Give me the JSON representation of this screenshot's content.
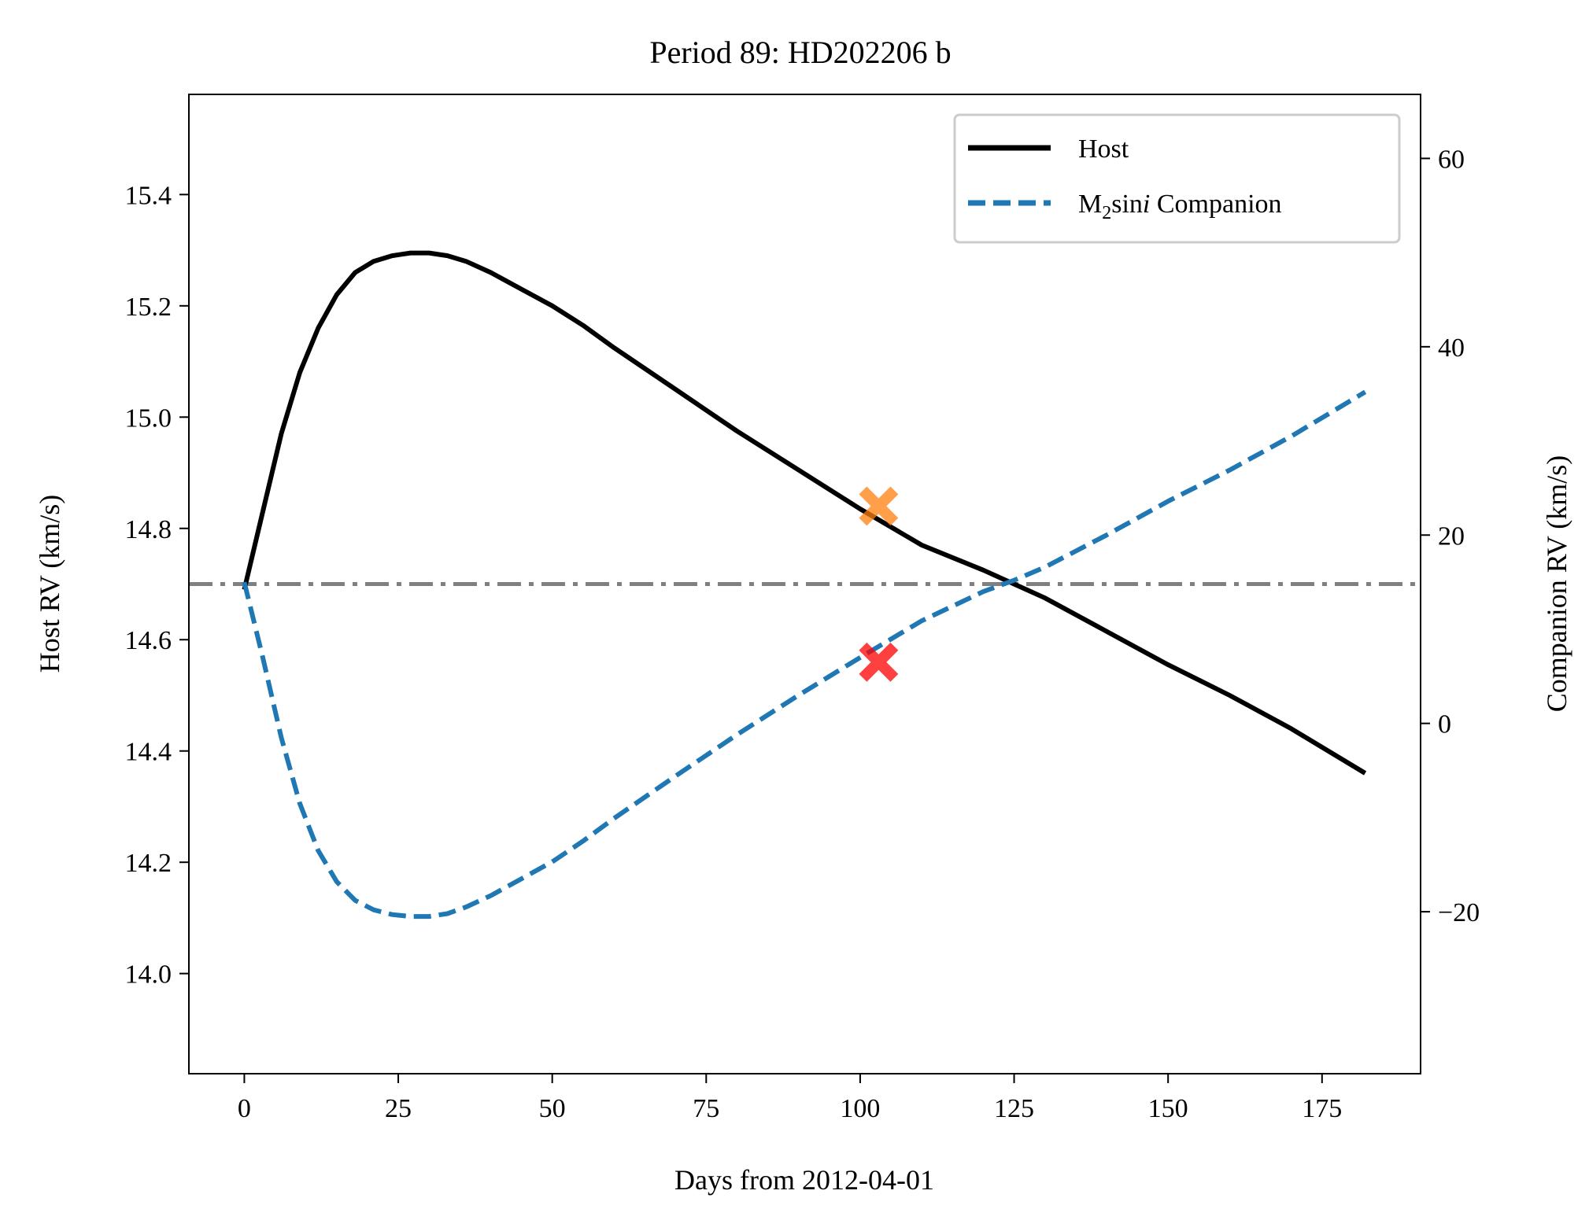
{
  "chart_data": {
    "type": "line",
    "title": "Period 89: HD202206 b",
    "xlabel": "Days from 2012-04-01",
    "ylabel_left": "Host RV (km/s)",
    "ylabel_right": "Companion RV (km/s)",
    "xlim": [
      -9,
      191
    ],
    "ylim_left": [
      13.82,
      15.58
    ],
    "ylim_right": [
      -37.2,
      66.8
    ],
    "x_ticks": [
      0,
      25,
      50,
      75,
      100,
      125,
      150,
      175
    ],
    "x_tick_labels": [
      "0",
      "25",
      "50",
      "75",
      "100",
      "125",
      "150",
      "175"
    ],
    "y_left_ticks": [
      14.0,
      14.2,
      14.4,
      14.6,
      14.8,
      15.0,
      15.2,
      15.4
    ],
    "y_left_tick_labels": [
      "14.0",
      "14.2",
      "14.4",
      "14.6",
      "14.8",
      "15.0",
      "15.2",
      "15.4"
    ],
    "y_right_ticks": [
      -20,
      0,
      20,
      40,
      60
    ],
    "y_right_tick_labels": [
      "−20",
      "0",
      "20",
      "40",
      "60"
    ],
    "grid": false,
    "legend_position": "top-right",
    "systemic_velocity_line": {
      "y_left": 14.7,
      "color": "#808080",
      "style": "dash-dot"
    },
    "series": [
      {
        "name": "Host",
        "axis": "left",
        "color": "#000000",
        "style": "solid",
        "x": [
          0,
          3,
          6,
          9,
          12,
          15,
          18,
          21,
          24,
          27,
          30,
          33,
          36,
          40,
          45,
          50,
          55,
          60,
          70,
          80,
          90,
          100,
          110,
          120,
          125,
          130,
          140,
          150,
          160,
          170,
          182
        ],
        "y": [
          14.69,
          14.83,
          14.97,
          15.08,
          15.16,
          15.22,
          15.26,
          15.28,
          15.29,
          15.295,
          15.295,
          15.29,
          15.28,
          15.26,
          15.23,
          15.2,
          15.165,
          15.125,
          15.05,
          14.975,
          14.905,
          14.835,
          14.77,
          14.725,
          14.7,
          14.675,
          14.615,
          14.555,
          14.5,
          14.44,
          14.36
        ]
      },
      {
        "name": "M₂sin i Companion",
        "axis": "right",
        "color": "#1f77b4",
        "style": "dashed",
        "x": [
          0,
          3,
          6,
          9,
          12,
          15,
          18,
          21,
          24,
          27,
          30,
          33,
          36,
          40,
          45,
          50,
          55,
          60,
          70,
          80,
          90,
          100,
          110,
          120,
          125,
          130,
          140,
          150,
          160,
          170,
          182
        ],
        "y": [
          15,
          7,
          -1.5,
          -8.5,
          -13.5,
          -16.8,
          -18.8,
          -19.8,
          -20.3,
          -20.5,
          -20.5,
          -20.2,
          -19.5,
          -18.3,
          -16.5,
          -14.7,
          -12.5,
          -10.1,
          -5.6,
          -1.2,
          3.0,
          7.0,
          10.9,
          14.0,
          15.2,
          16.6,
          20.0,
          23.6,
          26.9,
          30.5,
          35.2
        ]
      }
    ],
    "markers": [
      {
        "x": 103,
        "y_left": 14.84,
        "color": "#ff7f0e",
        "shape": "x",
        "axis": "left"
      },
      {
        "x": 103,
        "y_right": 6.5,
        "color": "#ff0000",
        "shape": "x",
        "axis": "right"
      }
    ],
    "legend": [
      {
        "label": "Host",
        "color": "#000000",
        "style": "solid"
      },
      {
        "label_main": "M",
        "label_sub": "2",
        "label_mid": "sin",
        "label_ital": "i",
        "label_end": " Companion",
        "color": "#1f77b4",
        "style": "dashed"
      }
    ]
  }
}
